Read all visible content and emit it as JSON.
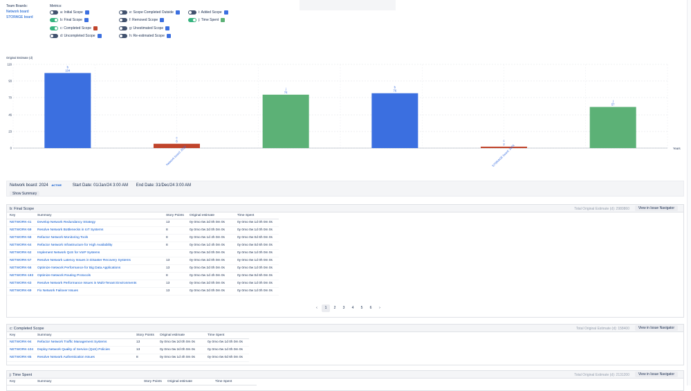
{
  "header": {
    "team_boards_title": "Team Boards:",
    "boards": [
      "Network board",
      "STORAGE board"
    ],
    "metrics_title": "Metrics:",
    "metrics": [
      {
        "label": "a: Initial Scope",
        "on": false,
        "color": "#3b6fe0"
      },
      {
        "label": "b: Final Scope",
        "on": true,
        "color": "#3b6fe0"
      },
      {
        "label": "c: Completed Scope",
        "on": true,
        "color": "#c0442b"
      },
      {
        "label": "d: Uncompleted Scope",
        "on": false,
        "color": "#3b6fe0"
      },
      {
        "label": "e: Scope Completed Outside",
        "on": false,
        "color": "#3b6fe0"
      },
      {
        "label": "f: Removed Scope",
        "on": false,
        "color": "#3b6fe0"
      },
      {
        "label": "g: Unestimated Scope",
        "on": false,
        "color": "#3b6fe0"
      },
      {
        "label": "h: Re-estimated Scope",
        "on": false,
        "color": "#3b6fe0"
      },
      {
        "label": "i: Added Scope",
        "on": false,
        "color": "#3b6fe0"
      },
      {
        "label": "j: Time Spent",
        "on": true,
        "color": "#5cb176"
      }
    ]
  },
  "chart_data": {
    "type": "bar",
    "ylabel": "Original Estimate (d)",
    "xlabel": "Years",
    "yticks": [
      0,
      23,
      46,
      70,
      93,
      116
    ],
    "ylim": [
      0,
      116
    ],
    "categories": [
      "Network board: 2024",
      "STORAGE board: 2024"
    ],
    "series": [
      {
        "name": "b",
        "color": "#3b6fe0",
        "values": [
          104,
          76
        ]
      },
      {
        "name": "c",
        "color": "#c0442b",
        "values": [
          6,
          2
        ]
      },
      {
        "name": "j",
        "color": "#5cb176",
        "values": [
          74,
          57
        ]
      }
    ]
  },
  "board_info": {
    "board": "Network board: 2024",
    "status": "ACTIVE",
    "start": "Start Date: 01/Jan/24 3:00 AM",
    "end": "End Date: 31/Dec/24 3:00 AM",
    "summary_button": "Show Summary"
  },
  "final_scope": {
    "title": "b: Final Scope",
    "total": "Total Original Estimate (d): 2980860",
    "button": "View in Issue Navigator",
    "columns": [
      "Key",
      "Summary",
      "Story Points",
      "Original estimate",
      "Time Spent"
    ],
    "rows": [
      [
        "NETWORK-41",
        "Develop Network Redundancy Strategy",
        "13",
        "0y 0mo 0w 2d 0h 0m 0s",
        "0y 0mo 0w 1d 0h 0m 0s"
      ],
      [
        "NETWORK-59",
        "Resolve Network Bottlenecks in IoT Systems",
        "8",
        "0y 0mo 0w 2d 0h 0m 0s",
        "0y 0mo 0w 1d 0h 0m 0s"
      ],
      [
        "NETWORK-58",
        "Refactor Network Monitoring Tools",
        "8",
        "0y 0mo 0w 1d 4h 0m 0s",
        "0y 0mo 0w 0d 6h 0m 0s"
      ],
      [
        "NETWORK-64",
        "Refactor Network Infrastructure for High Availability",
        "8",
        "0y 0mo 0w 1d 4h 0m 0s",
        "0y 0mo 0w 0d 6h 0m 0s"
      ],
      [
        "NETWORK-52",
        "Implement Network QoS for VoIP Systems",
        "",
        "0y 0mo 0w 2d 0h 0m 0s",
        "0y 0mo 0w 1d 0h 0m 0s"
      ],
      [
        "NETWORK-57",
        "Resolve Network Latency Issues in Disaster Recovery Systems",
        "13",
        "0y 0mo 0w 2d 0h 0m 0s",
        "0y 0mo 0w 1d 0h 0m 0s"
      ],
      [
        "NETWORK-56",
        "Optimize Network Performance for Big Data Applications",
        "13",
        "0y 0mo 0w 2d 0h 0m 0s",
        "0y 0mo 0w 1d 0h 0m 0s"
      ],
      [
        "NETWORK-183",
        "Optimize Network Routing Protocols",
        "8",
        "0y 0mo 0w 1d 4h 0m 0s",
        "0y 0mo 0w 0d 6h 0m 0s"
      ],
      [
        "NETWORK-63",
        "Resolve Network Performance Issues in Multi-Tenant Environments",
        "13",
        "0y 0mo 0w 2d 0h 0m 0s",
        "0y 0mo 0w 1d 0h 0m 0s"
      ],
      [
        "NETWORK-69",
        "Fix Network Failover Issues",
        "13",
        "0y 0mo 0w 2d 0h 0m 0s",
        "0y 0mo 0w 1d 0h 0m 0s"
      ]
    ]
  },
  "pagination": {
    "prev": "‹",
    "next": "›",
    "pages": [
      "1",
      "2",
      "3",
      "4",
      "5",
      "6"
    ],
    "current": "1"
  },
  "completed_scope": {
    "title": "c: Completed Scope",
    "total": "Total Original Estimate (d): 158400",
    "button": "View in Issue Navigator",
    "columns": [
      "Key",
      "Summary",
      "Story Points",
      "Original estimate",
      "Time Spent"
    ],
    "rows": [
      [
        "NETWORK-94",
        "Refactor Network Traffic Management Systems",
        "13",
        "0y 0mo 0w 2d 0h 0m 0s",
        "0y 0mo 0w 1d 0h 0m 0s"
      ],
      [
        "NETWORK-104",
        "Deploy Network Quality of Service (QoS) Policies",
        "13",
        "0y 0mo 0w 2d 0h 0m 0s",
        "0y 0mo 0w 1d 0h 0m 0s"
      ],
      [
        "NETWORK-85",
        "Resolve Network Authentication Issues",
        "8",
        "0y 0mo 0w 1d 4h 0m 0s",
        "0y 0mo 0w 0d 6h 0m 0s"
      ]
    ]
  },
  "time_spent": {
    "title": "j: Time Spent",
    "total": "Total Original Estimate (d): 2131200",
    "button": "View in Issue Navigator",
    "columns": [
      "Key",
      "Summary",
      "Story Points",
      "Original estimate",
      "Time Spent"
    ]
  }
}
